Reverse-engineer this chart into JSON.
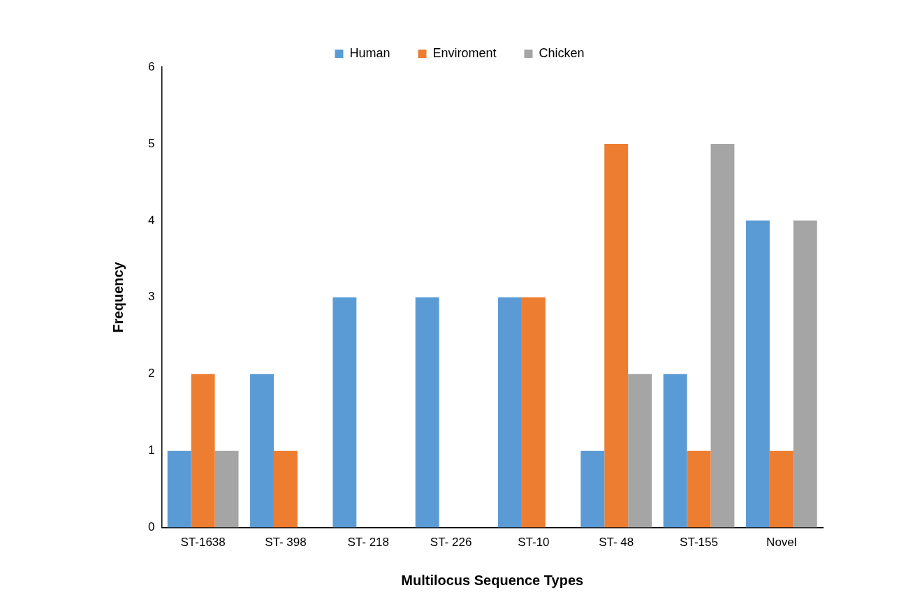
{
  "chart_data": {
    "type": "bar",
    "xlabel": "Multilocus Sequence Types",
    "ylabel": "Frequency",
    "categories": [
      "ST-1638",
      "ST- 398",
      "ST- 218",
      "ST- 226",
      "ST-10",
      "ST- 48",
      "ST-155",
      "Novel"
    ],
    "series": [
      {
        "name": "Human",
        "color": "#5b9bd5",
        "values": [
          1,
          2,
          3,
          3,
          3,
          1,
          2,
          4
        ]
      },
      {
        "name": "Enviroment",
        "color": "#ed7d31",
        "values": [
          2,
          1,
          0,
          0,
          3,
          5,
          1,
          1
        ]
      },
      {
        "name": "Chicken",
        "color": "#a5a5a5",
        "values": [
          1,
          0,
          0,
          0,
          0,
          2,
          5,
          4
        ]
      }
    ],
    "ylim": [
      0,
      6
    ],
    "yticks": [
      0,
      1,
      2,
      3,
      4,
      5,
      6
    ],
    "grid": false,
    "legend": "top"
  }
}
